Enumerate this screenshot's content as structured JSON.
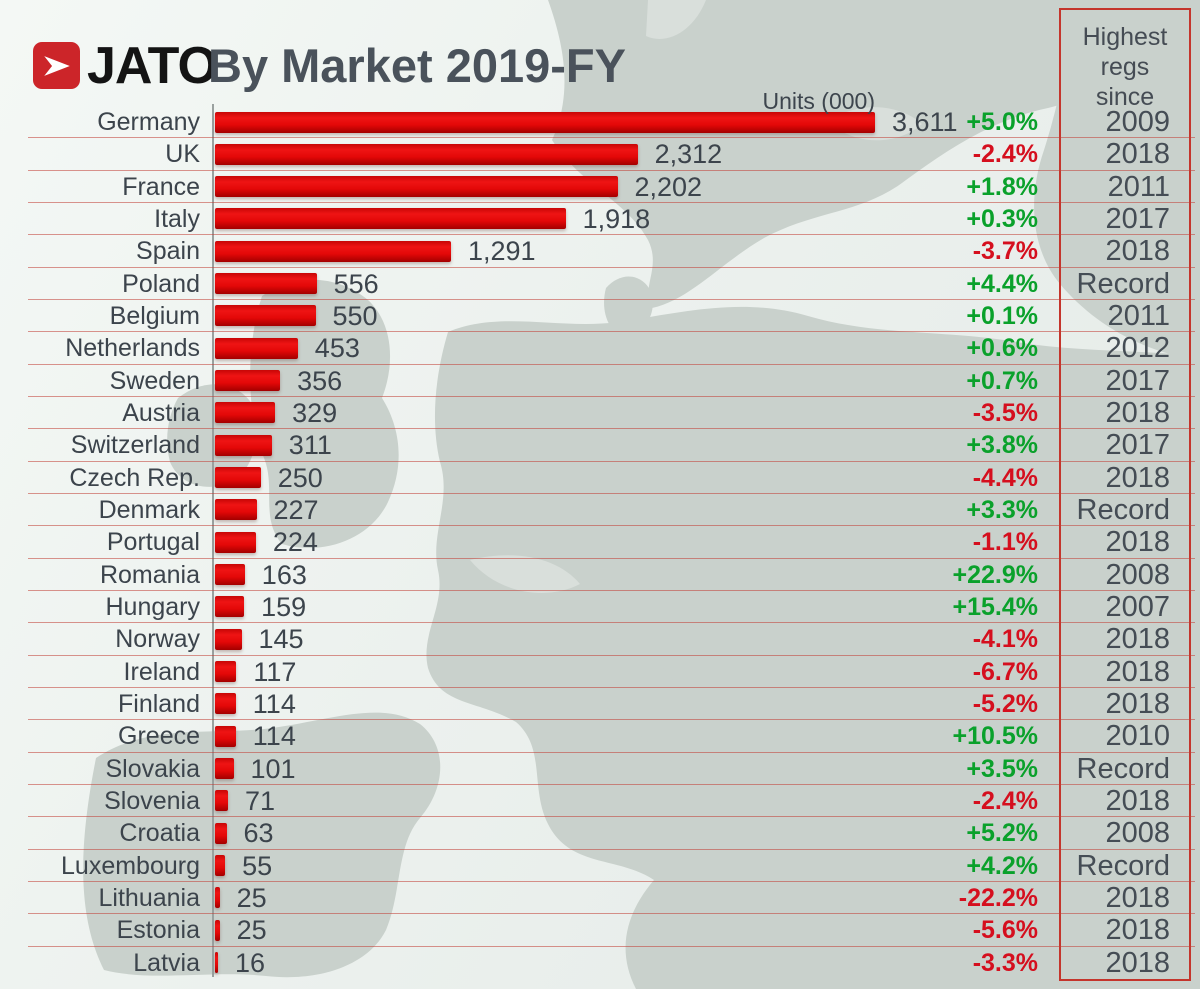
{
  "header": {
    "logo_text": "JATO",
    "title": "By Market 2019-FY"
  },
  "colors": {
    "bar_red": "#e30808",
    "positive_green": "#0aa12b",
    "negative_red": "#d50f1e",
    "text_slate": "#3c444c",
    "gridline_red": "#c13e34",
    "box_border_red": "#c4352c",
    "logo_red": "#cc2529",
    "map_land_gray": "#c9d1cc",
    "axis_gray": "#9aa19f"
  },
  "chart_data": {
    "type": "bar",
    "orientation": "horizontal",
    "title": "By Market 2019-FY",
    "units_label": "Units (000)",
    "xlim": [
      0,
      3611
    ],
    "grid": "row separators on",
    "side_column_header": "Highest\nregs\nsince",
    "rows": [
      {
        "market": "Germany",
        "units": 3611,
        "units_display": "3,611",
        "pct_change": "+5.0%",
        "trend": "up",
        "highest_since": "2009"
      },
      {
        "market": "UK",
        "units": 2312,
        "units_display": "2,312",
        "pct_change": "-2.4%",
        "trend": "down",
        "highest_since": "2018"
      },
      {
        "market": "France",
        "units": 2202,
        "units_display": "2,202",
        "pct_change": "+1.8%",
        "trend": "up",
        "highest_since": "2011"
      },
      {
        "market": "Italy",
        "units": 1918,
        "units_display": "1,918",
        "pct_change": "+0.3%",
        "trend": "up",
        "highest_since": "2017"
      },
      {
        "market": "Spain",
        "units": 1291,
        "units_display": "1,291",
        "pct_change": "-3.7%",
        "trend": "down",
        "highest_since": "2018"
      },
      {
        "market": "Poland",
        "units": 556,
        "units_display": "556",
        "pct_change": "+4.4%",
        "trend": "up",
        "highest_since": "Record"
      },
      {
        "market": "Belgium",
        "units": 550,
        "units_display": "550",
        "pct_change": "+0.1%",
        "trend": "up",
        "highest_since": "2011"
      },
      {
        "market": "Netherlands",
        "units": 453,
        "units_display": "453",
        "pct_change": "+0.6%",
        "trend": "up",
        "highest_since": "2012"
      },
      {
        "market": "Sweden",
        "units": 356,
        "units_display": "356",
        "pct_change": "+0.7%",
        "trend": "up",
        "highest_since": "2017"
      },
      {
        "market": "Austria",
        "units": 329,
        "units_display": "329",
        "pct_change": "-3.5%",
        "trend": "down",
        "highest_since": "2018"
      },
      {
        "market": "Switzerland",
        "units": 311,
        "units_display": "311",
        "pct_change": "+3.8%",
        "trend": "up",
        "highest_since": "2017"
      },
      {
        "market": "Czech Rep.",
        "units": 250,
        "units_display": "250",
        "pct_change": "-4.4%",
        "trend": "down",
        "highest_since": "2018"
      },
      {
        "market": "Denmark",
        "units": 227,
        "units_display": "227",
        "pct_change": "+3.3%",
        "trend": "up",
        "highest_since": "Record"
      },
      {
        "market": "Portugal",
        "units": 224,
        "units_display": "224",
        "pct_change": "-1.1%",
        "trend": "down",
        "highest_since": "2018"
      },
      {
        "market": "Romania",
        "units": 163,
        "units_display": "163",
        "pct_change": "+22.9%",
        "trend": "up",
        "highest_since": "2008"
      },
      {
        "market": "Hungary",
        "units": 159,
        "units_display": "159",
        "pct_change": "+15.4%",
        "trend": "up",
        "highest_since": "2007"
      },
      {
        "market": "Norway",
        "units": 145,
        "units_display": "145",
        "pct_change": "-4.1%",
        "trend": "down",
        "highest_since": "2018"
      },
      {
        "market": "Ireland",
        "units": 117,
        "units_display": "117",
        "pct_change": "-6.7%",
        "trend": "down",
        "highest_since": "2018"
      },
      {
        "market": "Finland",
        "units": 114,
        "units_display": "114",
        "pct_change": "-5.2%",
        "trend": "down",
        "highest_since": "2018"
      },
      {
        "market": "Greece",
        "units": 114,
        "units_display": "114",
        "pct_change": "+10.5%",
        "trend": "up",
        "highest_since": "2010"
      },
      {
        "market": "Slovakia",
        "units": 101,
        "units_display": "101",
        "pct_change": "+3.5%",
        "trend": "up",
        "highest_since": "Record"
      },
      {
        "market": "Slovenia",
        "units": 71,
        "units_display": "71",
        "pct_change": "-2.4%",
        "trend": "down",
        "highest_since": "2018"
      },
      {
        "market": "Croatia",
        "units": 63,
        "units_display": "63",
        "pct_change": "+5.2%",
        "trend": "up",
        "highest_since": "2008"
      },
      {
        "market": "Luxembourg",
        "units": 55,
        "units_display": "55",
        "pct_change": "+4.2%",
        "trend": "up",
        "highest_since": "Record"
      },
      {
        "market": "Lithuania",
        "units": 25,
        "units_display": "25",
        "pct_change": "-22.2%",
        "trend": "down",
        "highest_since": "2018"
      },
      {
        "market": "Estonia",
        "units": 25,
        "units_display": "25",
        "pct_change": "-5.6%",
        "trend": "down",
        "highest_since": "2018"
      },
      {
        "market": "Latvia",
        "units": 16,
        "units_display": "16",
        "pct_change": "-3.3%",
        "trend": "down",
        "highest_since": "2018"
      }
    ]
  }
}
